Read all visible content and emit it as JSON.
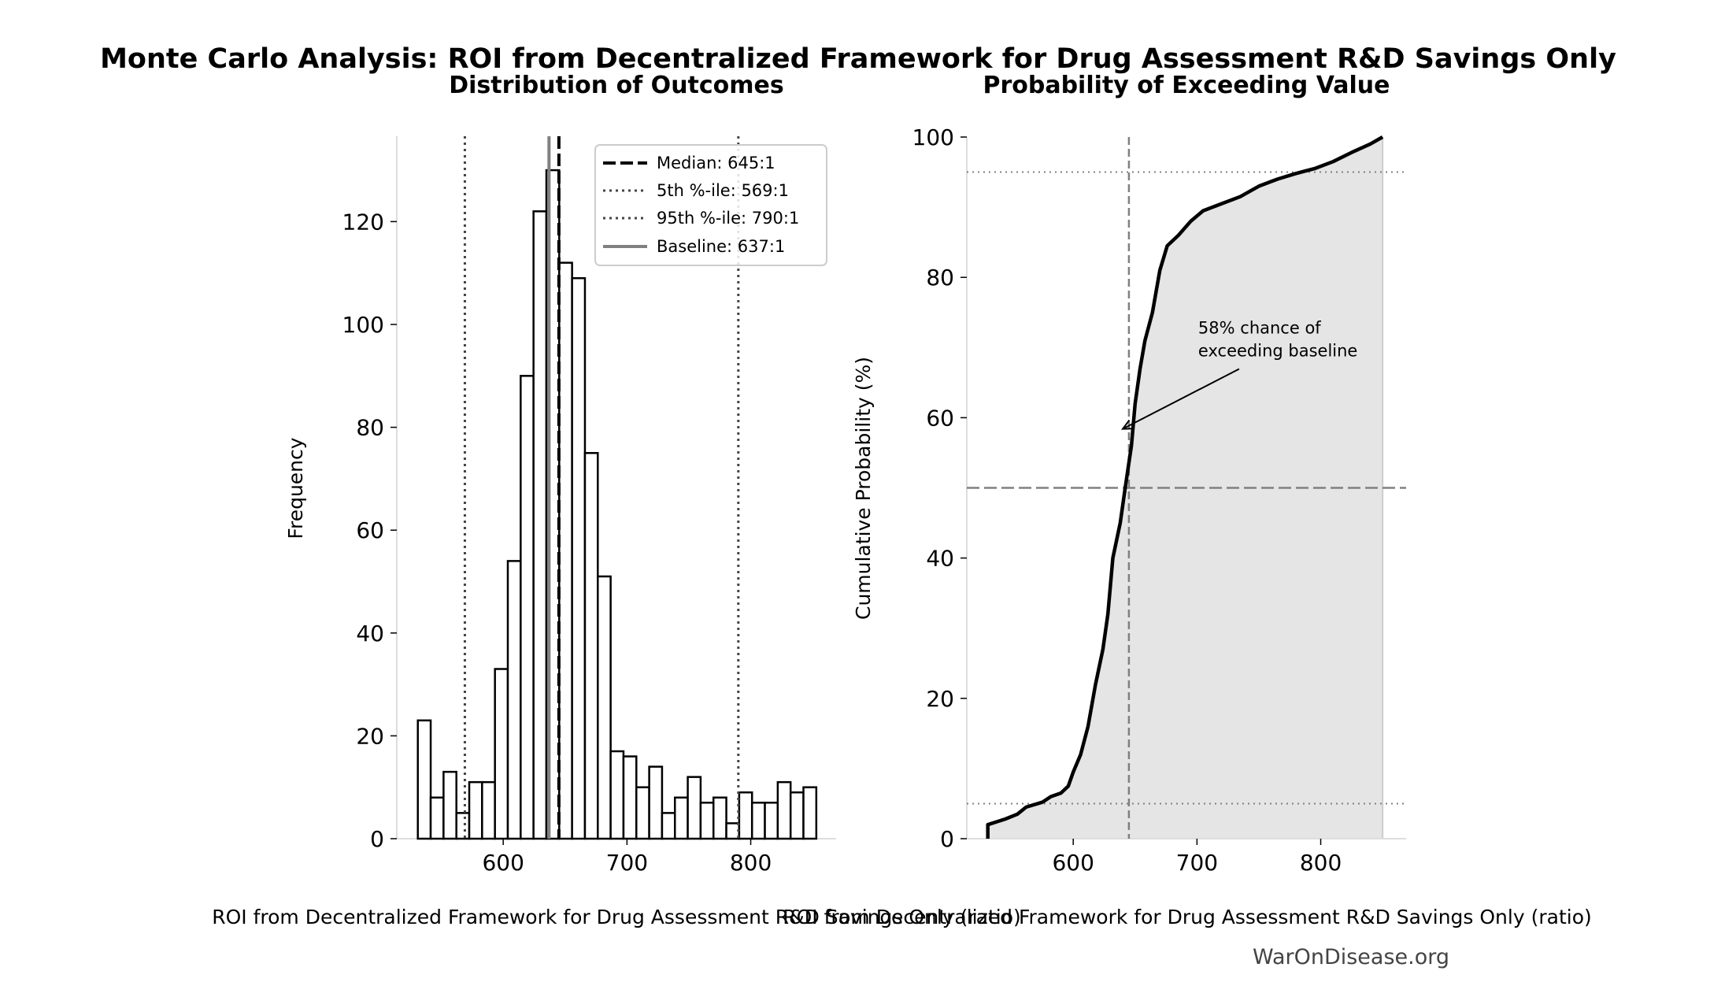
{
  "title": "Monte Carlo Analysis: ROI from Decentralized Framework for Drug Assessment R&D Savings Only",
  "footer": "WarOnDisease.org",
  "colors": {
    "bars_edge": "#000000",
    "median": "#000000",
    "percentile": "#444444",
    "baseline": "#808080",
    "fill": "#e5e5e5",
    "spine": "#dddddd"
  },
  "chart_data": [
    {
      "type": "bar",
      "subtitle": "Distribution of Outcomes",
      "xlabel": "ROI from Decentralized Framework for Drug Assessment R&D Savings Only (ratio)",
      "ylabel": "Frequency",
      "xlim": [
        514,
        869
      ],
      "ylim": [
        0,
        136.6
      ],
      "xticks": [
        600,
        700,
        800
      ],
      "yticks": [
        0,
        20,
        40,
        60,
        80,
        100,
        120
      ],
      "grid": false,
      "bin_start": 531,
      "bin_end": 853,
      "values": [
        23,
        8,
        13,
        5,
        11,
        11,
        33,
        54,
        90,
        122,
        130,
        112,
        109,
        75,
        51,
        17,
        16,
        10,
        14,
        5,
        8,
        12,
        7,
        8,
        3,
        9,
        7,
        7,
        11,
        9,
        10
      ],
      "reference_lines": [
        {
          "label": "Median: 645:1",
          "x": 645,
          "style": "dashed",
          "color": "#000000"
        },
        {
          "label": "5th %-ile: 569:1",
          "x": 569,
          "style": "dotted",
          "color": "#444444"
        },
        {
          "label": "95th %-ile: 790:1",
          "x": 790,
          "style": "dotted",
          "color": "#444444"
        },
        {
          "label": "Baseline: 637:1",
          "x": 637,
          "style": "solid",
          "color": "#808080"
        }
      ],
      "legend_position": "top-right"
    },
    {
      "type": "area",
      "subtitle": "Probability of Exceeding Value",
      "xlabel": "ROI from Decentralized Framework for Drug Assessment R&D Savings Only (ratio)",
      "ylabel": "Cumulative Probability (%)",
      "xlim": [
        514,
        869
      ],
      "ylim": [
        0,
        100
      ],
      "xticks": [
        600,
        700,
        800
      ],
      "yticks": [
        0,
        20,
        40,
        60,
        80,
        100
      ],
      "grid": false,
      "points": [
        [
          531,
          0
        ],
        [
          531,
          2
        ],
        [
          545,
          2.8
        ],
        [
          555,
          3.5
        ],
        [
          562,
          4.5
        ],
        [
          575,
          5.2
        ],
        [
          582,
          6
        ],
        [
          590,
          6.5
        ],
        [
          596,
          7.5
        ],
        [
          600,
          9.5
        ],
        [
          606,
          12
        ],
        [
          612,
          16
        ],
        [
          618,
          22
        ],
        [
          624,
          27
        ],
        [
          628,
          32
        ],
        [
          632,
          40
        ],
        [
          638,
          45
        ],
        [
          642,
          50
        ],
        [
          647,
          56
        ],
        [
          650,
          62
        ],
        [
          654,
          67
        ],
        [
          658,
          71
        ],
        [
          664,
          75
        ],
        [
          670,
          81
        ],
        [
          676,
          84.5
        ],
        [
          685,
          86
        ],
        [
          695,
          88
        ],
        [
          705,
          89.5
        ],
        [
          720,
          90.5
        ],
        [
          735,
          91.5
        ],
        [
          750,
          93
        ],
        [
          765,
          94
        ],
        [
          780,
          94.8
        ],
        [
          795,
          95.5
        ],
        [
          810,
          96.5
        ],
        [
          825,
          97.8
        ],
        [
          840,
          99
        ],
        [
          850,
          100
        ]
      ],
      "hlines": [
        {
          "y": 50,
          "style": "dashed"
        },
        {
          "y": 5,
          "style": "dotted"
        },
        {
          "y": 95,
          "style": "dotted"
        }
      ],
      "vline": {
        "x": 645,
        "style": "dashed"
      },
      "annotation": {
        "text_line1": "58% chance of",
        "text_line2": "exceeding baseline",
        "text_x": 701,
        "text_y": 72,
        "arrow_x": 640,
        "arrow_y": 58.4
      }
    }
  ]
}
